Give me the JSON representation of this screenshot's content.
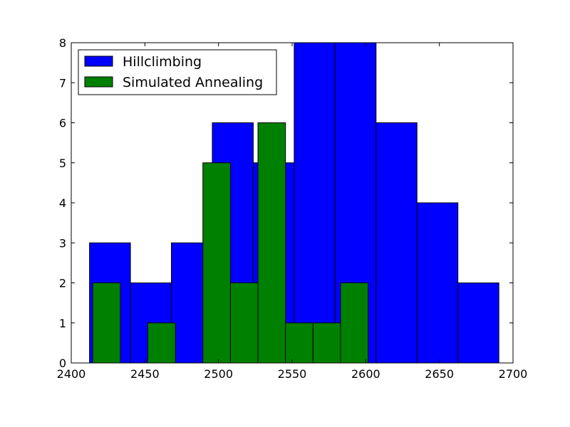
{
  "chart_data": {
    "type": "bar",
    "title": "",
    "xlabel": "",
    "ylabel": "",
    "xlim": [
      2400,
      2700
    ],
    "ylim": [
      0,
      8
    ],
    "xticks": [
      2400,
      2450,
      2500,
      2550,
      2600,
      2650,
      2700
    ],
    "yticks": [
      0,
      1,
      2,
      3,
      4,
      5,
      6,
      7,
      8
    ],
    "legend_position": "top-left",
    "grid": false,
    "series": [
      {
        "name": "Hillclimbing",
        "color": "#0000ff",
        "bins": [
          {
            "x0": 2412.4,
            "x1": 2440.2,
            "count": 3
          },
          {
            "x0": 2440.2,
            "x1": 2468.0,
            "count": 2
          },
          {
            "x0": 2468.0,
            "x1": 2495.8,
            "count": 3
          },
          {
            "x0": 2495.8,
            "x1": 2523.6,
            "count": 6
          },
          {
            "x0": 2523.6,
            "x1": 2551.4,
            "count": 5
          },
          {
            "x0": 2551.4,
            "x1": 2579.2,
            "count": 8
          },
          {
            "x0": 2579.2,
            "x1": 2607.0,
            "count": 8
          },
          {
            "x0": 2607.0,
            "x1": 2634.8,
            "count": 6
          },
          {
            "x0": 2634.8,
            "x1": 2662.6,
            "count": 4
          },
          {
            "x0": 2662.6,
            "x1": 2690.4,
            "count": 2
          }
        ]
      },
      {
        "name": "Simulated Annealing",
        "color": "#008000",
        "bins": [
          {
            "x0": 2414.6,
            "x1": 2433.3,
            "count": 2
          },
          {
            "x0": 2433.3,
            "x1": 2452.0,
            "count": 0
          },
          {
            "x0": 2452.0,
            "x1": 2470.7,
            "count": 1
          },
          {
            "x0": 2470.7,
            "x1": 2489.4,
            "count": 0
          },
          {
            "x0": 2489.4,
            "x1": 2508.1,
            "count": 5
          },
          {
            "x0": 2508.1,
            "x1": 2526.8,
            "count": 2
          },
          {
            "x0": 2526.8,
            "x1": 2545.5,
            "count": 6
          },
          {
            "x0": 2545.5,
            "x1": 2564.2,
            "count": 1
          },
          {
            "x0": 2564.2,
            "x1": 2582.9,
            "count": 1
          },
          {
            "x0": 2582.9,
            "x1": 2601.6,
            "count": 2
          }
        ]
      }
    ]
  }
}
